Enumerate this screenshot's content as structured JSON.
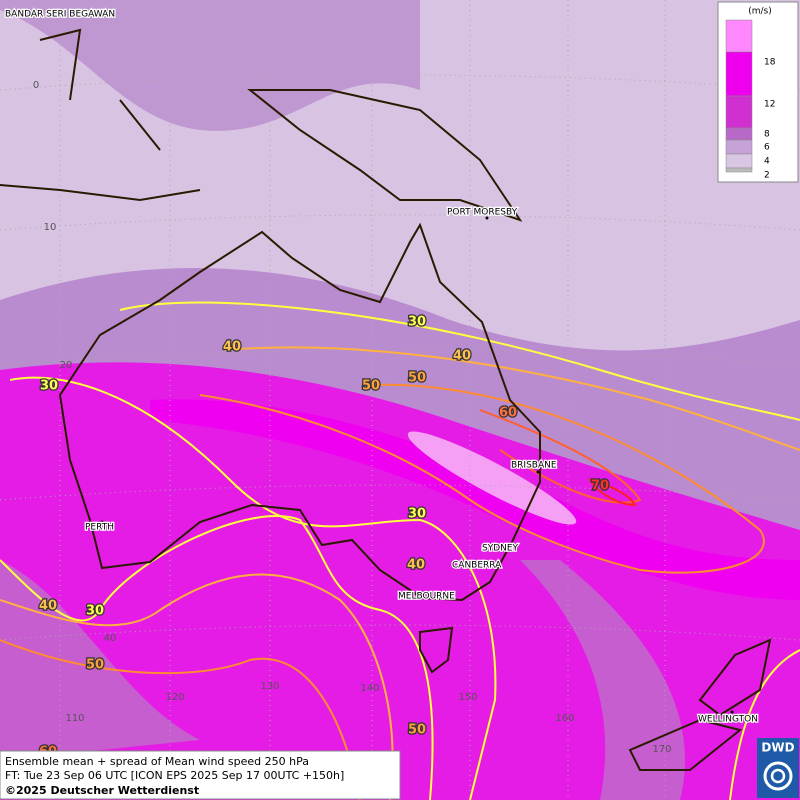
{
  "map": {
    "cities": [
      "BANDAR SERI BEGAWAN",
      "PORT MORESBY",
      "BRISBANE",
      "SYDNEY",
      "CANBERRA",
      "MELBOURNE",
      "PERTH",
      "WELLINGTON"
    ],
    "grid_labels": [
      0,
      10,
      20,
      40,
      110,
      120,
      130,
      140,
      150,
      160,
      170
    ],
    "contour_labels": [
      30,
      40,
      40,
      50,
      50,
      60,
      70,
      30,
      30,
      40,
      40,
      30,
      50,
      50,
      60
    ]
  },
  "legend": {
    "unit": "(m/s)",
    "steps": [
      18,
      12,
      8,
      6,
      4,
      2
    ]
  },
  "footer": {
    "lines": [
      "Ensemble mean + spread of Mean wind speed 250 hPa",
      "FT: Tue 23 Sep 06 UTC [ICON EPS 2025 Sep 17 00UTC +150h]",
      "©2025 Deutscher Wetterdienst"
    ]
  },
  "logo": "DWD"
}
